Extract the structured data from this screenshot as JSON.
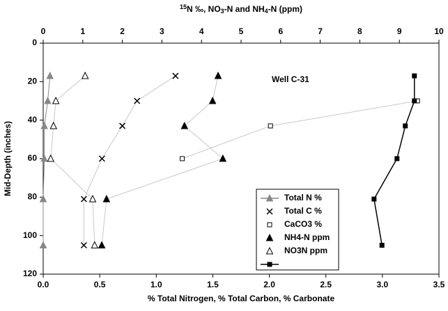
{
  "chart_data": {
    "type": "scatter",
    "x2_label": [
      "15",
      "N ‰, NO",
      "3",
      "-N and NH",
      "4",
      "-N (ppm)"
    ],
    "x_label": "% Total Nitrogen, % Total Carbon, % Carbonate",
    "y_label": "Mid-Depth (inches)",
    "annotation": "Well C-31",
    "xlim": [
      0,
      3.5
    ],
    "xticks": [
      {
        "value": 0,
        "label": "0.0"
      },
      0.5,
      {
        "value": 1,
        "label": "1.0"
      },
      1.5,
      {
        "value": 2,
        "label": "2.0"
      },
      2.5,
      {
        "value": 3,
        "label": "3.0"
      },
      3.5
    ],
    "x2lim": [
      0,
      10
    ],
    "x2ticks": [
      0,
      1,
      2,
      3,
      4,
      5,
      6,
      7,
      8,
      9,
      10
    ],
    "ylim": [
      0,
      120
    ],
    "yticks": [
      0,
      20,
      40,
      60,
      80,
      100,
      120
    ],
    "y_inverted": true,
    "legend": "bottom-center",
    "series": [
      {
        "name": "Total N %",
        "marker": "triangle-filled",
        "color": "#888888",
        "line_color": "#888888",
        "axis": "x",
        "x": [
          0.06,
          0.04,
          0.01,
          0.01,
          0.0,
          0.0
        ],
        "y": [
          17,
          30,
          43,
          60,
          81,
          105
        ]
      },
      {
        "name": "Total C %",
        "marker": "cross",
        "color": "#000000",
        "line_color": "#c8c8c8",
        "axis": "x",
        "x": [
          1.17,
          0.83,
          0.7,
          0.52,
          0.36,
          0.36
        ],
        "y": [
          17,
          30,
          43,
          60,
          81,
          105
        ]
      },
      {
        "name": "CaCO3 %",
        "marker": "square-open",
        "color": "#000000",
        "line_color": "#c8c8c8",
        "axis": "x",
        "x": [
          3.31,
          2.01,
          1.23
        ],
        "y": [
          30,
          43,
          60
        ]
      },
      {
        "name": "NH4-N ppm",
        "marker": "triangle-filled",
        "color": "#000000",
        "line_color": "#c8c8c8",
        "axis": "x2",
        "x": [
          4.42,
          4.28,
          3.57,
          4.54,
          1.6,
          1.48
        ],
        "y": [
          17,
          30,
          43,
          60,
          81,
          105
        ]
      },
      {
        "name": "NO3N ppm",
        "marker": "triangle-open",
        "color": "#000000",
        "line_color": "#c8c8c8",
        "axis": "x2",
        "x": [
          1.06,
          0.32,
          0.26,
          0.19,
          1.25,
          1.3
        ],
        "y": [
          17,
          30,
          43,
          60,
          81,
          105
        ]
      },
      {
        "marker": "square-filled",
        "color": "#000000",
        "line_color": "#000000",
        "axis": "x2",
        "x": [
          9.38,
          9.38,
          9.15,
          8.94,
          8.36,
          8.56
        ],
        "y": [
          17,
          30,
          43,
          60,
          81,
          105
        ]
      }
    ]
  }
}
